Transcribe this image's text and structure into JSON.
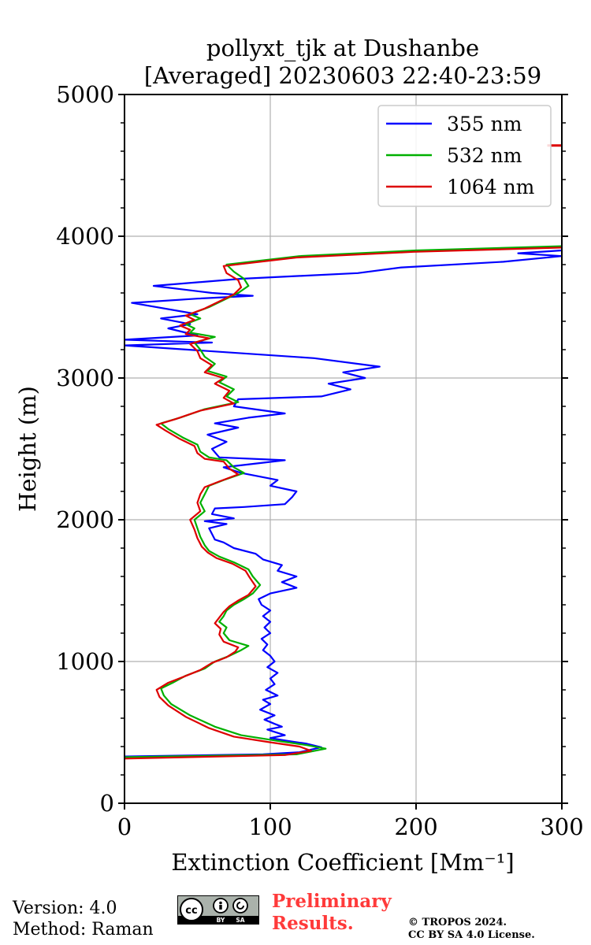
{
  "chart_data": {
    "type": "line",
    "title": "pollyxt_tjk at Dushanbe",
    "subtitle": "[Averaged] 20230603 22:40-23:59",
    "xlabel": "Extinction Coefficient [Mm⁻¹]",
    "ylabel": "Height (m)",
    "xlim": [
      0,
      300
    ],
    "ylim": [
      0,
      5000
    ],
    "xticks": [
      0,
      100,
      200,
      300
    ],
    "yticks": [
      0,
      1000,
      2000,
      3000,
      4000,
      5000
    ],
    "grid": true,
    "legend_position": "top-right",
    "series": [
      {
        "name": "355 nm",
        "color": "#0000ff",
        "points": [
          [
            0,
            330
          ],
          [
            95,
            345
          ],
          [
            120,
            360
          ],
          [
            135,
            395
          ],
          [
            125,
            420
          ],
          [
            112,
            440
          ],
          [
            100,
            460
          ],
          [
            110,
            480
          ],
          [
            98,
            520
          ],
          [
            108,
            540
          ],
          [
            103,
            560
          ],
          [
            96,
            590
          ],
          [
            103,
            620
          ],
          [
            93,
            660
          ],
          [
            100,
            700
          ],
          [
            95,
            730
          ],
          [
            105,
            760
          ],
          [
            97,
            800
          ],
          [
            103,
            840
          ],
          [
            100,
            880
          ],
          [
            105,
            920
          ],
          [
            98,
            960
          ],
          [
            103,
            1000
          ],
          [
            100,
            1040
          ],
          [
            95,
            1080
          ],
          [
            98,
            1120
          ],
          [
            94,
            1160
          ],
          [
            100,
            1200
          ],
          [
            96,
            1240
          ],
          [
            100,
            1280
          ],
          [
            95,
            1320
          ],
          [
            100,
            1360
          ],
          [
            94,
            1400
          ],
          [
            92,
            1440
          ],
          [
            100,
            1480
          ],
          [
            118,
            1520
          ],
          [
            108,
            1560
          ],
          [
            118,
            1600
          ],
          [
            105,
            1640
          ],
          [
            108,
            1680
          ],
          [
            95,
            1720
          ],
          [
            90,
            1760
          ],
          [
            75,
            1800
          ],
          [
            68,
            1840
          ],
          [
            62,
            1860
          ],
          [
            60,
            1900
          ],
          [
            58,
            1940
          ],
          [
            70,
            1970
          ],
          [
            55,
            1990
          ],
          [
            75,
            2010
          ],
          [
            60,
            2040
          ],
          [
            62,
            2080
          ],
          [
            82,
            2090
          ],
          [
            110,
            2110
          ],
          [
            115,
            2160
          ],
          [
            118,
            2200
          ],
          [
            100,
            2240
          ],
          [
            105,
            2280
          ],
          [
            80,
            2330
          ],
          [
            68,
            2370
          ],
          [
            110,
            2420
          ],
          [
            65,
            2440
          ],
          [
            60,
            2500
          ],
          [
            70,
            2550
          ],
          [
            57,
            2600
          ],
          [
            78,
            2650
          ],
          [
            62,
            2680
          ],
          [
            85,
            2720
          ],
          [
            110,
            2750
          ],
          [
            75,
            2800
          ],
          [
            78,
            2850
          ],
          [
            135,
            2870
          ],
          [
            155,
            2920
          ],
          [
            140,
            2960
          ],
          [
            165,
            3000
          ],
          [
            150,
            3040
          ],
          [
            175,
            3080
          ],
          [
            130,
            3140
          ],
          [
            0,
            3230
          ],
          [
            60,
            3250
          ],
          [
            0,
            3270
          ],
          [
            50,
            3300
          ],
          [
            30,
            3350
          ],
          [
            45,
            3380
          ],
          [
            25,
            3420
          ],
          [
            50,
            3450
          ],
          [
            5,
            3530
          ],
          [
            50,
            3560
          ],
          [
            88,
            3580
          ],
          [
            60,
            3600
          ],
          [
            20,
            3650
          ],
          [
            80,
            3700
          ],
          [
            120,
            3720
          ],
          [
            160,
            3740
          ],
          [
            190,
            3780
          ],
          [
            260,
            3820
          ],
          [
            300,
            3860
          ],
          [
            270,
            3880
          ],
          [
            300,
            3900
          ]
        ]
      },
      {
        "name": "532 nm",
        "color": "#00b000",
        "points": [
          [
            0,
            325
          ],
          [
            118,
            345
          ],
          [
            138,
            385
          ],
          [
            125,
            410
          ],
          [
            105,
            440
          ],
          [
            80,
            480
          ],
          [
            62,
            540
          ],
          [
            45,
            620
          ],
          [
            32,
            700
          ],
          [
            27,
            760
          ],
          [
            25,
            810
          ],
          [
            33,
            850
          ],
          [
            42,
            900
          ],
          [
            55,
            950
          ],
          [
            62,
            1000
          ],
          [
            72,
            1040
          ],
          [
            80,
            1080
          ],
          [
            85,
            1110
          ],
          [
            72,
            1150
          ],
          [
            68,
            1200
          ],
          [
            70,
            1240
          ],
          [
            65,
            1280
          ],
          [
            68,
            1320
          ],
          [
            70,
            1360
          ],
          [
            75,
            1400
          ],
          [
            82,
            1440
          ],
          [
            88,
            1480
          ],
          [
            93,
            1540
          ],
          [
            88,
            1600
          ],
          [
            85,
            1650
          ],
          [
            75,
            1700
          ],
          [
            65,
            1740
          ],
          [
            58,
            1780
          ],
          [
            55,
            1820
          ],
          [
            52,
            1880
          ],
          [
            50,
            1940
          ],
          [
            48,
            2000
          ],
          [
            55,
            2060
          ],
          [
            52,
            2120
          ],
          [
            55,
            2180
          ],
          [
            58,
            2240
          ],
          [
            68,
            2280
          ],
          [
            82,
            2330
          ],
          [
            75,
            2370
          ],
          [
            70,
            2420
          ],
          [
            58,
            2440
          ],
          [
            52,
            2480
          ],
          [
            50,
            2530
          ],
          [
            40,
            2580
          ],
          [
            30,
            2640
          ],
          [
            25,
            2680
          ],
          [
            38,
            2720
          ],
          [
            55,
            2780
          ],
          [
            78,
            2830
          ],
          [
            70,
            2870
          ],
          [
            75,
            2920
          ],
          [
            65,
            2970
          ],
          [
            70,
            3010
          ],
          [
            57,
            3050
          ],
          [
            62,
            3100
          ],
          [
            55,
            3150
          ],
          [
            52,
            3200
          ],
          [
            48,
            3250
          ],
          [
            62,
            3290
          ],
          [
            45,
            3320
          ],
          [
            48,
            3350
          ],
          [
            42,
            3380
          ],
          [
            52,
            3420
          ],
          [
            45,
            3450
          ],
          [
            58,
            3500
          ],
          [
            68,
            3550
          ],
          [
            78,
            3600
          ],
          [
            85,
            3650
          ],
          [
            82,
            3700
          ],
          [
            75,
            3750
          ],
          [
            70,
            3800
          ],
          [
            120,
            3860
          ],
          [
            200,
            3900
          ],
          [
            300,
            3930
          ]
        ]
      },
      {
        "name": "1064 nm",
        "color": "#dd0000",
        "points": [
          [
            0,
            315
          ],
          [
            110,
            340
          ],
          [
            128,
            370
          ],
          [
            120,
            400
          ],
          [
            100,
            430
          ],
          [
            75,
            470
          ],
          [
            58,
            530
          ],
          [
            42,
            610
          ],
          [
            30,
            690
          ],
          [
            24,
            750
          ],
          [
            22,
            800
          ],
          [
            30,
            850
          ],
          [
            40,
            890
          ],
          [
            52,
            940
          ],
          [
            60,
            990
          ],
          [
            70,
            1030
          ],
          [
            76,
            1070
          ],
          [
            78,
            1100
          ],
          [
            68,
            1140
          ],
          [
            65,
            1190
          ],
          [
            66,
            1230
          ],
          [
            62,
            1270
          ],
          [
            65,
            1310
          ],
          [
            68,
            1350
          ],
          [
            72,
            1390
          ],
          [
            78,
            1430
          ],
          [
            85,
            1470
          ],
          [
            90,
            1530
          ],
          [
            86,
            1590
          ],
          [
            83,
            1640
          ],
          [
            74,
            1690
          ],
          [
            63,
            1730
          ],
          [
            57,
            1770
          ],
          [
            53,
            1810
          ],
          [
            50,
            1870
          ],
          [
            48,
            1930
          ],
          [
            45,
            2000
          ],
          [
            52,
            2060
          ],
          [
            50,
            2120
          ],
          [
            52,
            2180
          ],
          [
            55,
            2230
          ],
          [
            65,
            2270
          ],
          [
            78,
            2320
          ],
          [
            72,
            2360
          ],
          [
            68,
            2410
          ],
          [
            55,
            2430
          ],
          [
            50,
            2470
          ],
          [
            48,
            2520
          ],
          [
            38,
            2570
          ],
          [
            28,
            2630
          ],
          [
            22,
            2670
          ],
          [
            35,
            2710
          ],
          [
            52,
            2770
          ],
          [
            75,
            2820
          ],
          [
            68,
            2860
          ],
          [
            72,
            2910
          ],
          [
            62,
            2960
          ],
          [
            68,
            3000
          ],
          [
            55,
            3040
          ],
          [
            60,
            3090
          ],
          [
            52,
            3140
          ],
          [
            50,
            3190
          ],
          [
            45,
            3240
          ],
          [
            58,
            3280
          ],
          [
            42,
            3310
          ],
          [
            45,
            3340
          ],
          [
            38,
            3370
          ],
          [
            48,
            3410
          ],
          [
            42,
            3440
          ],
          [
            55,
            3490
          ],
          [
            65,
            3540
          ],
          [
            75,
            3590
          ],
          [
            80,
            3640
          ],
          [
            78,
            3690
          ],
          [
            70,
            3740
          ],
          [
            68,
            3790
          ],
          [
            118,
            3850
          ],
          [
            198,
            3890
          ],
          [
            300,
            3920
          ]
        ]
      }
    ],
    "extra_marks": [
      {
        "series": "1064 nm",
        "x": [
          290,
          300
        ],
        "y": 4640
      }
    ]
  },
  "footer": {
    "version": "Version: 4.0",
    "method": "Method: Raman",
    "preliminary_line1": "Preliminary",
    "preliminary_line2": "Results.",
    "copyright_line1": "© TROPOS 2024.",
    "copyright_line2": "CC BY SA 4.0 License.",
    "license_badge": {
      "cc": "cc",
      "by": "BY",
      "sa": "SA",
      "icon": "creative-commons-by-sa-icon"
    }
  }
}
